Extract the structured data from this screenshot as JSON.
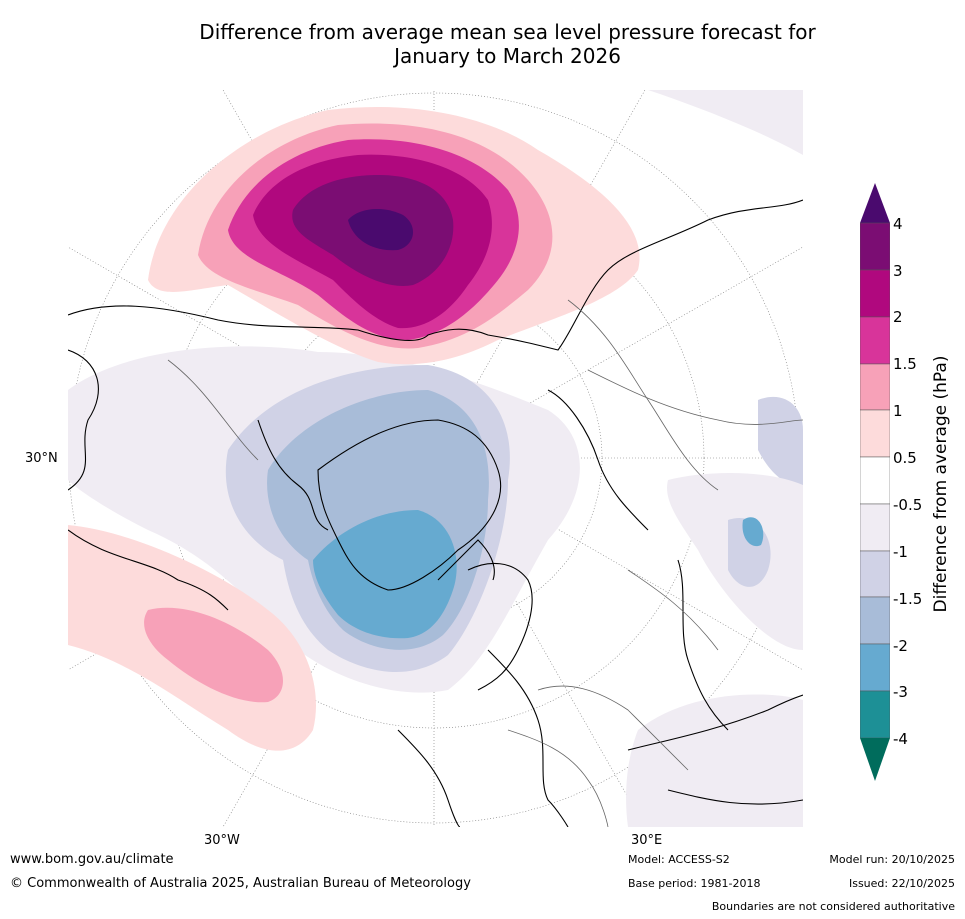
{
  "title_line1": "Difference from average mean sea level pressure forecast for",
  "title_line2": "January to March 2026",
  "axis_labels": {
    "lat30": "30°N",
    "lon_w": "30°W",
    "lon_e": "30°E"
  },
  "colorbar": {
    "title": "Difference from average (hPa)",
    "tick_labels": [
      "4",
      "3",
      "2",
      "1.5",
      "1",
      "0.5",
      "-0.5",
      "-1",
      "-1.5",
      "-2",
      "-3",
      "-4"
    ],
    "colors": {
      "above_4": "#4a0a6e",
      "3_to_4": "#7b0d73",
      "2_to_3": "#b0087e",
      "1_5_to_2": "#d8349a",
      "1_to_1_5": "#f7a1b8",
      "0_5_to_1": "#fddbdb",
      "neutral": "#ffffff",
      "m1_to_m0_5": "#f0ecf3",
      "m1_5_to_m1": "#d0d2e6",
      "m2_to_m1_5": "#a8bcd8",
      "m3_to_m2": "#66aad0",
      "m4_to_m3": "#1d9096",
      "below_m4": "#006c5c"
    }
  },
  "footer": {
    "url": "www.bom.gov.au/climate",
    "copyright": "© Commonwealth of Australia 2025, Australian Bureau of Meteorology",
    "model": "Model: ACCESS-S2",
    "base_period": "Base period: 1981-2018",
    "model_run": "Model run: 20/10/2025",
    "issued": "Issued: 22/10/2025",
    "boundaries": "Boundaries are not considered authoritative"
  }
}
